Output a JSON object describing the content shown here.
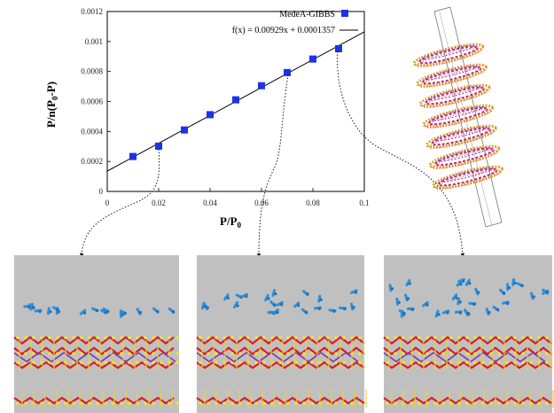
{
  "chart_data": {
    "type": "scatter",
    "xlabel": "P/P0",
    "ylabel": "P/n(P0-P)",
    "xlim": [
      0,
      0.1
    ],
    "ylim": [
      0,
      0.0012
    ],
    "x_ticks": [
      "0",
      "0.02",
      "0.04",
      "0.06",
      "0.08",
      "0.1"
    ],
    "y_ticks": [
      "0",
      "0.0002",
      "0.0004",
      "0.0006",
      "0.0008",
      "0.001",
      "0.0012"
    ],
    "series": [
      {
        "name": "MedeA-GIBBS",
        "type": "scatter",
        "x": [
          0.01,
          0.02,
          0.03,
          0.04,
          0.05,
          0.06,
          0.07,
          0.08,
          0.09
        ],
        "y": [
          0.000233,
          0.000302,
          0.00041,
          0.000512,
          0.000611,
          0.000705,
          0.000793,
          0.000883,
          0.000952
        ]
      },
      {
        "name": "f(x) = 0.00929x + 0.0001357",
        "type": "line",
        "slope": 0.00929,
        "intercept": 0.0001357
      }
    ],
    "legend_position": "top-right",
    "colors": {
      "points": "#1a33e6",
      "fit_line": "#000000"
    }
  },
  "panels": [
    {
      "pressure": 0.02
    },
    {
      "pressure": 0.07
    },
    {
      "pressure": 0.09
    }
  ]
}
